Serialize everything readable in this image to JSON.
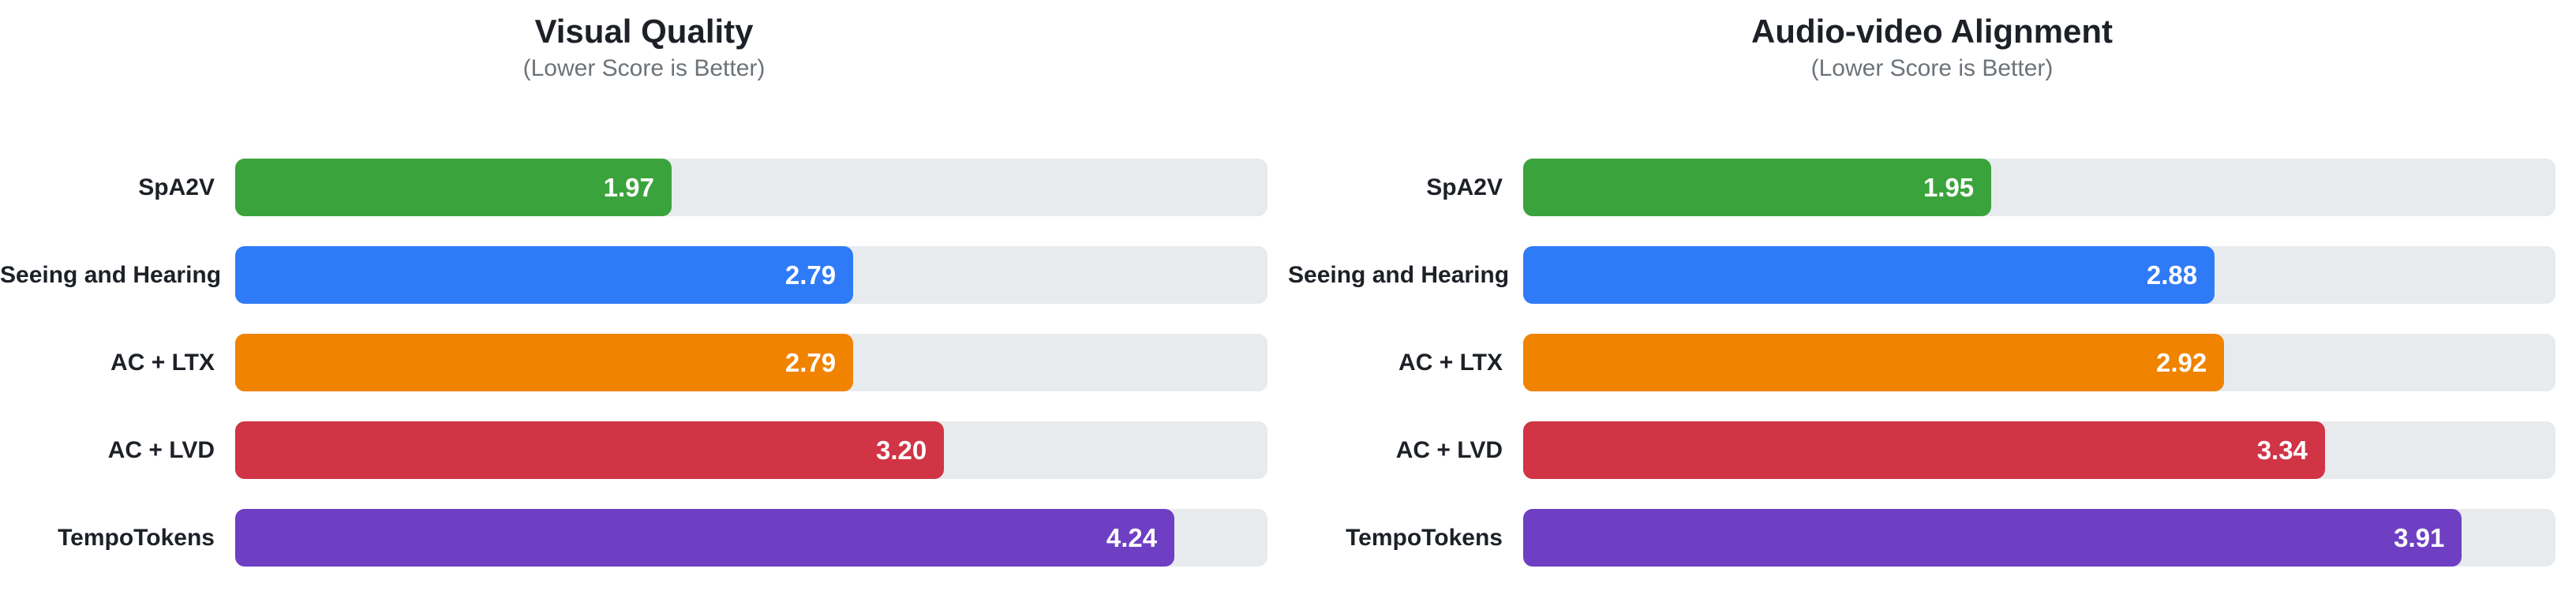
{
  "page": {
    "background": "#ffffff"
  },
  "colors": {
    "title_text": "#1d2127",
    "subtitle_text": "#6c7379",
    "category_label_text": "#1d2127",
    "value_label_text": "#ffffff",
    "bar_track": "#e8ebee",
    "green": "#3ba33c",
    "blue": "#2f7bf7",
    "orange": "#f08300",
    "red": "#d03445",
    "purple": "#6e3fc3"
  },
  "chart_data": [
    {
      "type": "bar",
      "orientation": "horizontal",
      "title": "Visual Quality",
      "subtitle": "(Lower Score is Better)",
      "categories": [
        "SpA2V",
        "Seeing and Hearing",
        "AC + LTX",
        "AC + LVD",
        "TempoTokens"
      ],
      "values": [
        1.97,
        2.79,
        2.79,
        3.2,
        4.24
      ],
      "value_labels": [
        "1.97",
        "2.79",
        "2.79",
        "3.20",
        "4.24"
      ],
      "bar_colors": [
        "#3ba33c",
        "#2f7bf7",
        "#f08300",
        "#d03445",
        "#6e3fc3"
      ],
      "track_color": "#e8ebee",
      "xlabel": "",
      "ylabel": "",
      "xlim": [
        0,
        4.66
      ],
      "grid": false,
      "legend": false,
      "value_label_position": "inside-end"
    },
    {
      "type": "bar",
      "orientation": "horizontal",
      "title": "Audio-video Alignment",
      "subtitle": "(Lower Score is Better)",
      "categories": [
        "SpA2V",
        "Seeing and Hearing",
        "AC + LTX",
        "AC + LVD",
        "TempoTokens"
      ],
      "values": [
        1.95,
        2.88,
        2.92,
        3.34,
        3.91
      ],
      "value_labels": [
        "1.95",
        "2.88",
        "2.92",
        "3.34",
        "3.91"
      ],
      "bar_colors": [
        "#3ba33c",
        "#2f7bf7",
        "#f08300",
        "#d03445",
        "#6e3fc3"
      ],
      "track_color": "#e8ebee",
      "xlabel": "",
      "ylabel": "",
      "xlim": [
        0,
        4.3
      ],
      "grid": false,
      "legend": false,
      "value_label_position": "inside-end"
    }
  ]
}
